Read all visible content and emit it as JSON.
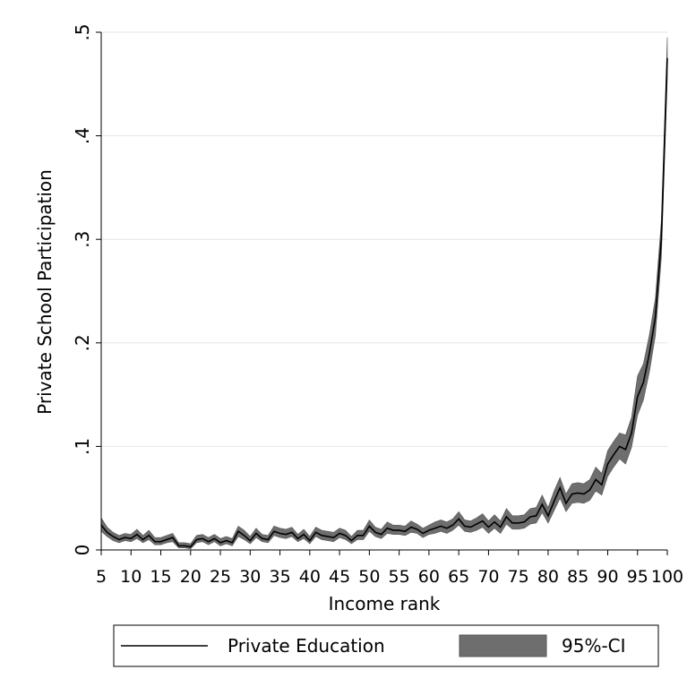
{
  "chart_data": {
    "type": "line",
    "title": "",
    "xlabel": "Income rank",
    "ylabel": "Private School Participation",
    "xlim": [
      5,
      100
    ],
    "ylim": [
      0,
      0.5
    ],
    "x_ticks": [
      5,
      10,
      15,
      20,
      25,
      30,
      35,
      40,
      45,
      50,
      55,
      60,
      65,
      70,
      75,
      80,
      85,
      90,
      95,
      100
    ],
    "y_ticks": [
      0,
      0.1,
      0.2,
      0.3,
      0.4,
      0.5
    ],
    "y_tick_labels": [
      "0",
      ".1",
      ".2",
      ".3",
      ".4",
      ".5"
    ],
    "grid": true,
    "legend": {
      "placement": "bottom",
      "entries": [
        "Private Education",
        "95%-CI"
      ]
    },
    "colors": {
      "line": "#000000",
      "band": "#6e6e6e",
      "grid": "#e6e6e6"
    },
    "series": [
      {
        "name": "Private Education",
        "x": [
          5,
          6,
          7,
          8,
          9,
          10,
          11,
          12,
          13,
          14,
          15,
          16,
          17,
          18,
          19,
          20,
          21,
          22,
          23,
          24,
          25,
          26,
          27,
          28,
          29,
          30,
          31,
          32,
          33,
          34,
          35,
          36,
          37,
          38,
          39,
          40,
          41,
          42,
          43,
          44,
          45,
          46,
          47,
          48,
          49,
          50,
          51,
          52,
          53,
          54,
          55,
          56,
          57,
          58,
          59,
          60,
          61,
          62,
          63,
          64,
          65,
          66,
          67,
          68,
          69,
          70,
          71,
          72,
          73,
          74,
          75,
          76,
          77,
          78,
          79,
          80,
          81,
          82,
          83,
          84,
          85,
          86,
          87,
          88,
          89,
          90,
          91,
          92,
          93,
          94,
          95,
          96,
          97,
          98,
          99,
          100
        ],
        "y": [
          0.024,
          0.017,
          0.013,
          0.01,
          0.012,
          0.011,
          0.015,
          0.01,
          0.014,
          0.008,
          0.008,
          0.01,
          0.012,
          0.004,
          0.004,
          0.003,
          0.01,
          0.011,
          0.008,
          0.011,
          0.007,
          0.009,
          0.007,
          0.018,
          0.014,
          0.009,
          0.016,
          0.011,
          0.01,
          0.018,
          0.016,
          0.015,
          0.017,
          0.011,
          0.015,
          0.009,
          0.017,
          0.014,
          0.013,
          0.012,
          0.016,
          0.014,
          0.009,
          0.014,
          0.014,
          0.023,
          0.017,
          0.015,
          0.021,
          0.019,
          0.019,
          0.018,
          0.022,
          0.02,
          0.016,
          0.019,
          0.021,
          0.023,
          0.021,
          0.024,
          0.03,
          0.023,
          0.022,
          0.025,
          0.028,
          0.022,
          0.027,
          0.022,
          0.032,
          0.026,
          0.026,
          0.027,
          0.032,
          0.033,
          0.044,
          0.033,
          0.047,
          0.06,
          0.045,
          0.054,
          0.055,
          0.054,
          0.058,
          0.068,
          0.063,
          0.083,
          0.092,
          0.1,
          0.097,
          0.113,
          0.148,
          0.162,
          0.19,
          0.225,
          0.3,
          0.475
        ],
        "lower": [
          0.018,
          0.013,
          0.009,
          0.007,
          0.009,
          0.008,
          0.011,
          0.007,
          0.01,
          0.005,
          0.005,
          0.007,
          0.008,
          0.002,
          0.002,
          0.001,
          0.007,
          0.008,
          0.005,
          0.008,
          0.004,
          0.006,
          0.004,
          0.013,
          0.01,
          0.006,
          0.012,
          0.008,
          0.007,
          0.014,
          0.012,
          0.011,
          0.013,
          0.008,
          0.011,
          0.006,
          0.013,
          0.01,
          0.009,
          0.008,
          0.012,
          0.01,
          0.006,
          0.01,
          0.01,
          0.018,
          0.013,
          0.011,
          0.016,
          0.015,
          0.015,
          0.014,
          0.017,
          0.016,
          0.012,
          0.015,
          0.016,
          0.018,
          0.016,
          0.019,
          0.024,
          0.018,
          0.017,
          0.019,
          0.022,
          0.016,
          0.021,
          0.016,
          0.025,
          0.02,
          0.02,
          0.021,
          0.025,
          0.026,
          0.036,
          0.026,
          0.038,
          0.05,
          0.037,
          0.045,
          0.046,
          0.045,
          0.048,
          0.057,
          0.053,
          0.071,
          0.08,
          0.088,
          0.083,
          0.099,
          0.13,
          0.145,
          0.172,
          0.207,
          0.282,
          0.455
        ],
        "upper": [
          0.031,
          0.022,
          0.017,
          0.014,
          0.016,
          0.015,
          0.02,
          0.014,
          0.019,
          0.012,
          0.012,
          0.014,
          0.016,
          0.007,
          0.007,
          0.006,
          0.014,
          0.015,
          0.012,
          0.015,
          0.011,
          0.013,
          0.011,
          0.023,
          0.019,
          0.013,
          0.021,
          0.015,
          0.014,
          0.023,
          0.021,
          0.02,
          0.022,
          0.015,
          0.02,
          0.013,
          0.022,
          0.019,
          0.018,
          0.017,
          0.021,
          0.019,
          0.013,
          0.019,
          0.019,
          0.029,
          0.022,
          0.02,
          0.027,
          0.024,
          0.024,
          0.023,
          0.028,
          0.025,
          0.021,
          0.024,
          0.027,
          0.029,
          0.027,
          0.03,
          0.037,
          0.029,
          0.028,
          0.031,
          0.035,
          0.028,
          0.034,
          0.028,
          0.04,
          0.033,
          0.033,
          0.034,
          0.04,
          0.041,
          0.053,
          0.041,
          0.057,
          0.07,
          0.054,
          0.064,
          0.065,
          0.064,
          0.068,
          0.08,
          0.074,
          0.096,
          0.105,
          0.113,
          0.111,
          0.128,
          0.168,
          0.18,
          0.208,
          0.243,
          0.318,
          0.495
        ]
      }
    ]
  }
}
